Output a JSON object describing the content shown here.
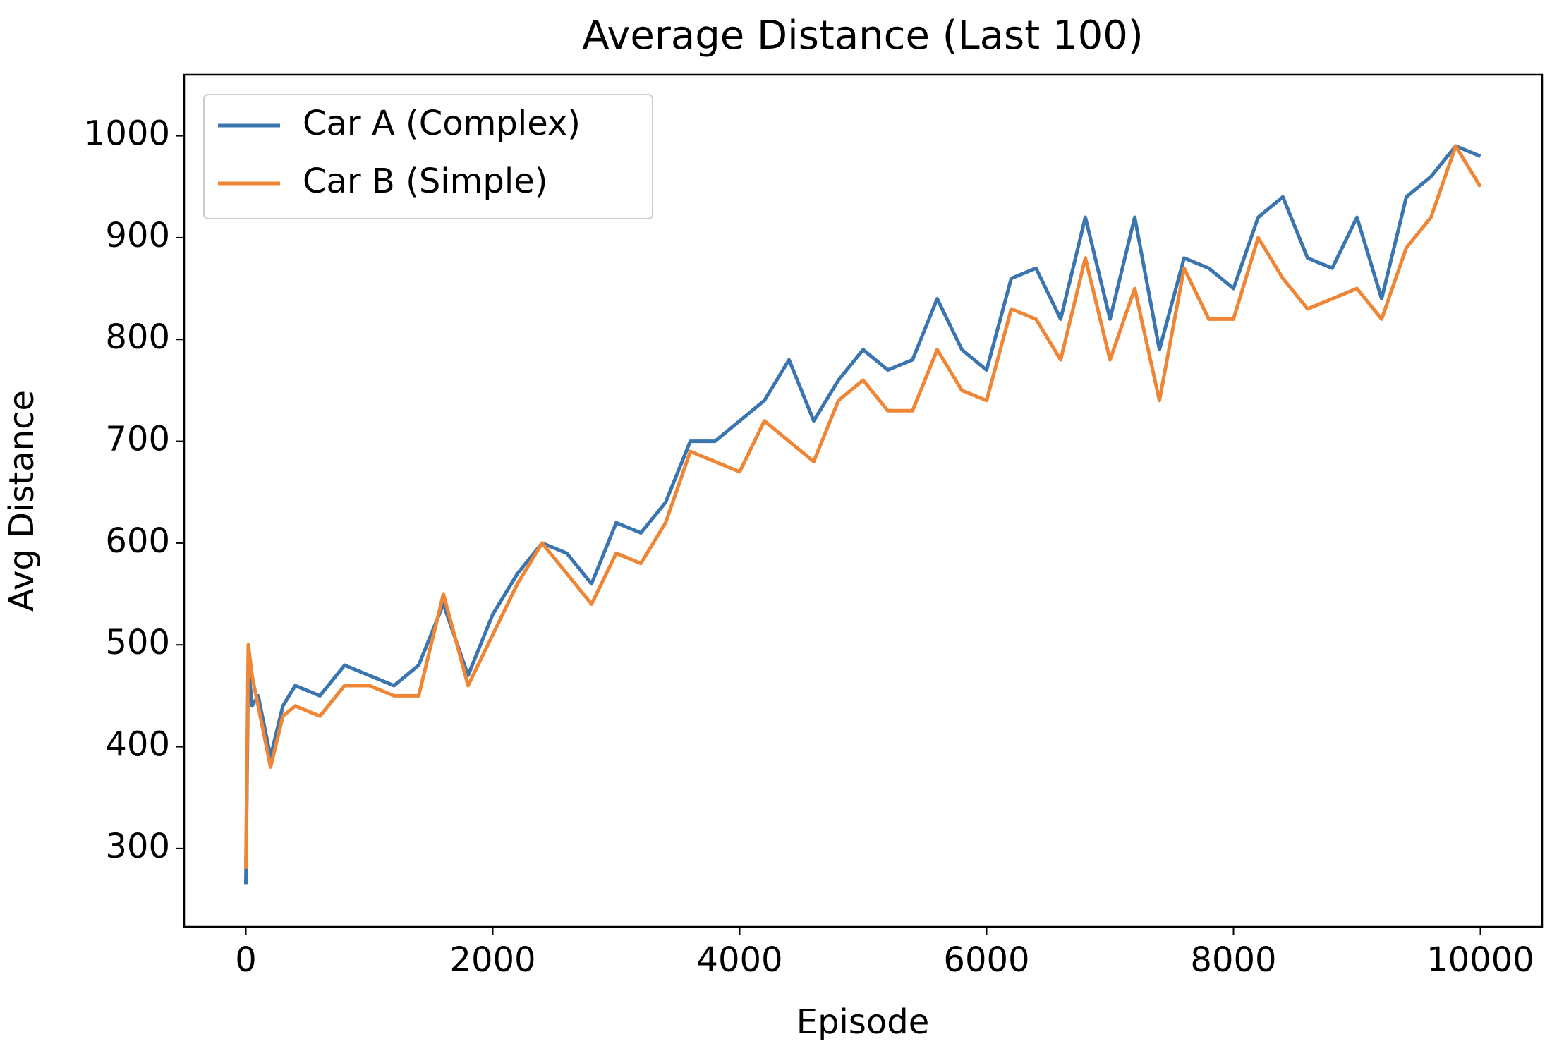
{
  "chart_data": {
    "type": "line",
    "title": "Average Distance (Last 100)",
    "x_label": "Episode",
    "y_label": "Avg Distance",
    "x": [
      0,
      20,
      50,
      100,
      200,
      300,
      400,
      600,
      800,
      1000,
      1200,
      1400,
      1600,
      1800,
      2000,
      2200,
      2400,
      2600,
      2800,
      3000,
      3200,
      3400,
      3600,
      3800,
      4000,
      4200,
      4400,
      4600,
      4800,
      5000,
      5200,
      5400,
      5600,
      5800,
      6000,
      6200,
      6400,
      6600,
      6800,
      7000,
      7200,
      7400,
      7600,
      7800,
      8000,
      8200,
      8400,
      8600,
      8800,
      9000,
      9200,
      9400,
      9600,
      9800,
      10000
    ],
    "series": [
      {
        "name": "Car A (Complex)",
        "color": "#3b75af",
        "values": [
          265,
          480,
          440,
          450,
          390,
          440,
          460,
          450,
          480,
          470,
          460,
          480,
          540,
          470,
          530,
          570,
          600,
          590,
          560,
          620,
          610,
          640,
          700,
          700,
          720,
          740,
          780,
          720,
          760,
          790,
          770,
          780,
          840,
          790,
          770,
          860,
          870,
          820,
          920,
          820,
          920,
          790,
          880,
          870,
          850,
          920,
          940,
          880,
          870,
          920,
          840,
          940,
          960,
          990,
          980
        ]
      },
      {
        "name": "Car B (Simple)",
        "color": "#ef8636",
        "values": [
          280,
          500,
          470,
          440,
          380,
          430,
          440,
          430,
          460,
          460,
          450,
          450,
          550,
          460,
          510,
          560,
          600,
          570,
          540,
          590,
          580,
          620,
          690,
          680,
          670,
          720,
          700,
          680,
          740,
          760,
          730,
          730,
          790,
          750,
          740,
          830,
          820,
          780,
          880,
          780,
          850,
          740,
          870,
          820,
          820,
          900,
          860,
          830,
          840,
          850,
          820,
          890,
          920,
          990,
          950
        ]
      }
    ],
    "xlim": [
      -500,
      10500
    ],
    "ylim": [
      223,
      1060
    ],
    "xticks": [
      0,
      2000,
      4000,
      6000,
      8000,
      10000
    ],
    "yticks": [
      300,
      400,
      500,
      600,
      700,
      800,
      900,
      1000
    ],
    "grid": false,
    "legend": "upper left"
  }
}
